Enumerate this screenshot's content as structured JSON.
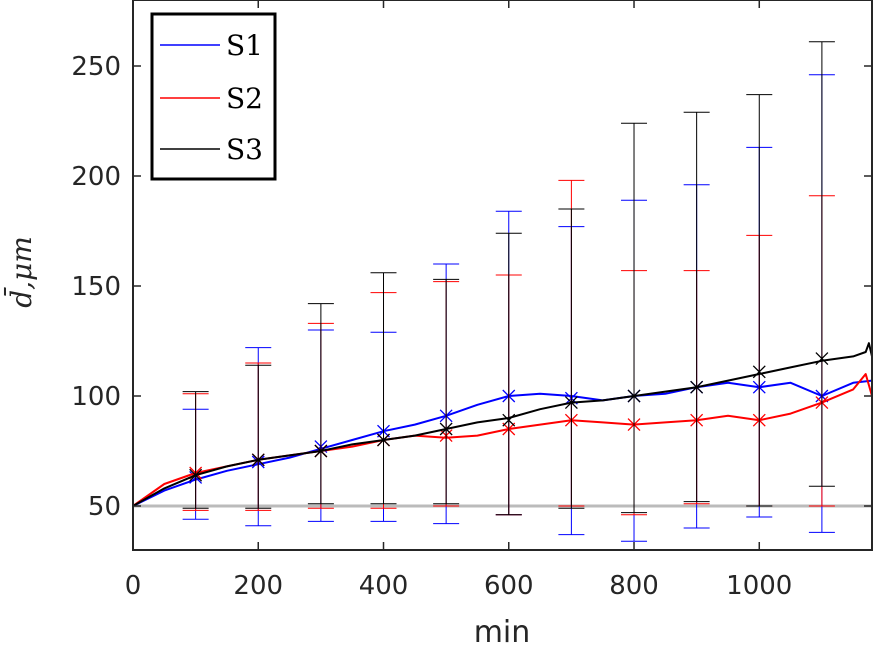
{
  "chart_data": {
    "type": "line",
    "title": "",
    "xlabel": "min",
    "ylabel": "d̄,μm",
    "xlim": [
      0,
      1180
    ],
    "ylim": [
      30,
      280
    ],
    "xticks": [
      0,
      200,
      400,
      600,
      800,
      1000
    ],
    "yticks": [
      50,
      100,
      150,
      200,
      250
    ],
    "grid": false,
    "legend_position": "top-left",
    "reference_line": {
      "y": 50,
      "color": "#bbbbbb"
    },
    "series": [
      {
        "name": "S1",
        "color": "#0000ff",
        "line": [
          [
            0,
            50
          ],
          [
            50,
            57
          ],
          [
            100,
            62
          ],
          [
            150,
            66
          ],
          [
            200,
            69
          ],
          [
            250,
            72
          ],
          [
            300,
            76
          ],
          [
            350,
            80
          ],
          [
            400,
            84
          ],
          [
            450,
            87
          ],
          [
            500,
            91
          ],
          [
            550,
            96
          ],
          [
            600,
            100
          ],
          [
            650,
            101
          ],
          [
            700,
            100
          ],
          [
            750,
            98
          ],
          [
            800,
            100
          ],
          [
            850,
            101
          ],
          [
            900,
            104
          ],
          [
            950,
            106
          ],
          [
            1000,
            104
          ],
          [
            1050,
            106
          ],
          [
            1100,
            100
          ],
          [
            1150,
            106
          ],
          [
            1180,
            107
          ]
        ],
        "markers": [
          [
            100,
            63
          ],
          [
            200,
            70
          ],
          [
            300,
            77
          ],
          [
            400,
            84
          ],
          [
            500,
            91
          ],
          [
            600,
            100
          ],
          [
            700,
            99
          ],
          [
            800,
            100
          ],
          [
            900,
            104
          ],
          [
            1000,
            104
          ],
          [
            1100,
            100
          ]
        ],
        "error_bars": [
          {
            "x": 100,
            "low": 44,
            "high": 94
          },
          {
            "x": 200,
            "low": 41,
            "high": 122
          },
          {
            "x": 300,
            "low": 43,
            "high": 130
          },
          {
            "x": 400,
            "low": 43,
            "high": 129
          },
          {
            "x": 500,
            "low": 42,
            "high": 160
          },
          {
            "x": 600,
            "low": 46,
            "high": 184
          },
          {
            "x": 700,
            "low": 37,
            "high": 177
          },
          {
            "x": 800,
            "low": 34,
            "high": 189
          },
          {
            "x": 900,
            "low": 40,
            "high": 196
          },
          {
            "x": 1000,
            "low": 45,
            "high": 213
          },
          {
            "x": 1100,
            "low": 38,
            "high": 246
          }
        ]
      },
      {
        "name": "S2",
        "color": "#ff0000",
        "line": [
          [
            0,
            50
          ],
          [
            50,
            60
          ],
          [
            100,
            65
          ],
          [
            150,
            68
          ],
          [
            200,
            71
          ],
          [
            250,
            73
          ],
          [
            300,
            75
          ],
          [
            350,
            77
          ],
          [
            400,
            80
          ],
          [
            450,
            82
          ],
          [
            500,
            81
          ],
          [
            550,
            82
          ],
          [
            600,
            85
          ],
          [
            650,
            87
          ],
          [
            700,
            89
          ],
          [
            750,
            88
          ],
          [
            800,
            87
          ],
          [
            850,
            88
          ],
          [
            900,
            89
          ],
          [
            950,
            91
          ],
          [
            1000,
            89
          ],
          [
            1050,
            92
          ],
          [
            1100,
            97
          ],
          [
            1150,
            103
          ],
          [
            1170,
            110
          ],
          [
            1180,
            100
          ]
        ],
        "markers": [
          [
            100,
            65
          ],
          [
            200,
            71
          ],
          [
            300,
            75
          ],
          [
            400,
            80
          ],
          [
            500,
            82
          ],
          [
            600,
            85
          ],
          [
            700,
            89
          ],
          [
            800,
            87
          ],
          [
            900,
            89
          ],
          [
            1000,
            89
          ],
          [
            1100,
            97
          ]
        ],
        "error_bars": [
          {
            "x": 100,
            "low": 48,
            "high": 101
          },
          {
            "x": 200,
            "low": 48,
            "high": 115
          },
          {
            "x": 300,
            "low": 49,
            "high": 133
          },
          {
            "x": 400,
            "low": 49,
            "high": 147
          },
          {
            "x": 500,
            "low": 50,
            "high": 152
          },
          {
            "x": 600,
            "low": 46,
            "high": 155
          },
          {
            "x": 700,
            "low": 50,
            "high": 198
          },
          {
            "x": 800,
            "low": 46,
            "high": 157
          },
          {
            "x": 900,
            "low": 51,
            "high": 157
          },
          {
            "x": 1000,
            "low": 50,
            "high": 173
          },
          {
            "x": 1100,
            "low": 50,
            "high": 191
          }
        ]
      },
      {
        "name": "S3",
        "color": "#000000",
        "line": [
          [
            0,
            50
          ],
          [
            50,
            58
          ],
          [
            100,
            64
          ],
          [
            150,
            68
          ],
          [
            200,
            71
          ],
          [
            250,
            73
          ],
          [
            300,
            75
          ],
          [
            350,
            78
          ],
          [
            400,
            80
          ],
          [
            450,
            82
          ],
          [
            500,
            85
          ],
          [
            550,
            88
          ],
          [
            600,
            90
          ],
          [
            650,
            94
          ],
          [
            700,
            97
          ],
          [
            750,
            98
          ],
          [
            800,
            100
          ],
          [
            850,
            102
          ],
          [
            900,
            104
          ],
          [
            950,
            107
          ],
          [
            1000,
            110
          ],
          [
            1050,
            113
          ],
          [
            1100,
            116
          ],
          [
            1150,
            118
          ],
          [
            1170,
            120
          ],
          [
            1175,
            124
          ],
          [
            1180,
            118
          ]
        ],
        "markers": [
          [
            100,
            64
          ],
          [
            200,
            71
          ],
          [
            300,
            75
          ],
          [
            400,
            80
          ],
          [
            500,
            85
          ],
          [
            600,
            89
          ],
          [
            700,
            97
          ],
          [
            800,
            100
          ],
          [
            900,
            104
          ],
          [
            1000,
            111
          ],
          [
            1100,
            117
          ]
        ],
        "error_bars": [
          {
            "x": 100,
            "low": 49,
            "high": 102
          },
          {
            "x": 200,
            "low": 49,
            "high": 114
          },
          {
            "x": 300,
            "low": 51,
            "high": 142
          },
          {
            "x": 400,
            "low": 51,
            "high": 156
          },
          {
            "x": 500,
            "low": 51,
            "high": 153
          },
          {
            "x": 600,
            "low": 46,
            "high": 174
          },
          {
            "x": 700,
            "low": 49,
            "high": 185
          },
          {
            "x": 800,
            "low": 47,
            "high": 224
          },
          {
            "x": 900,
            "low": 52,
            "high": 229
          },
          {
            "x": 1000,
            "low": 50,
            "high": 237
          },
          {
            "x": 1100,
            "low": 59,
            "high": 261
          }
        ]
      }
    ]
  }
}
